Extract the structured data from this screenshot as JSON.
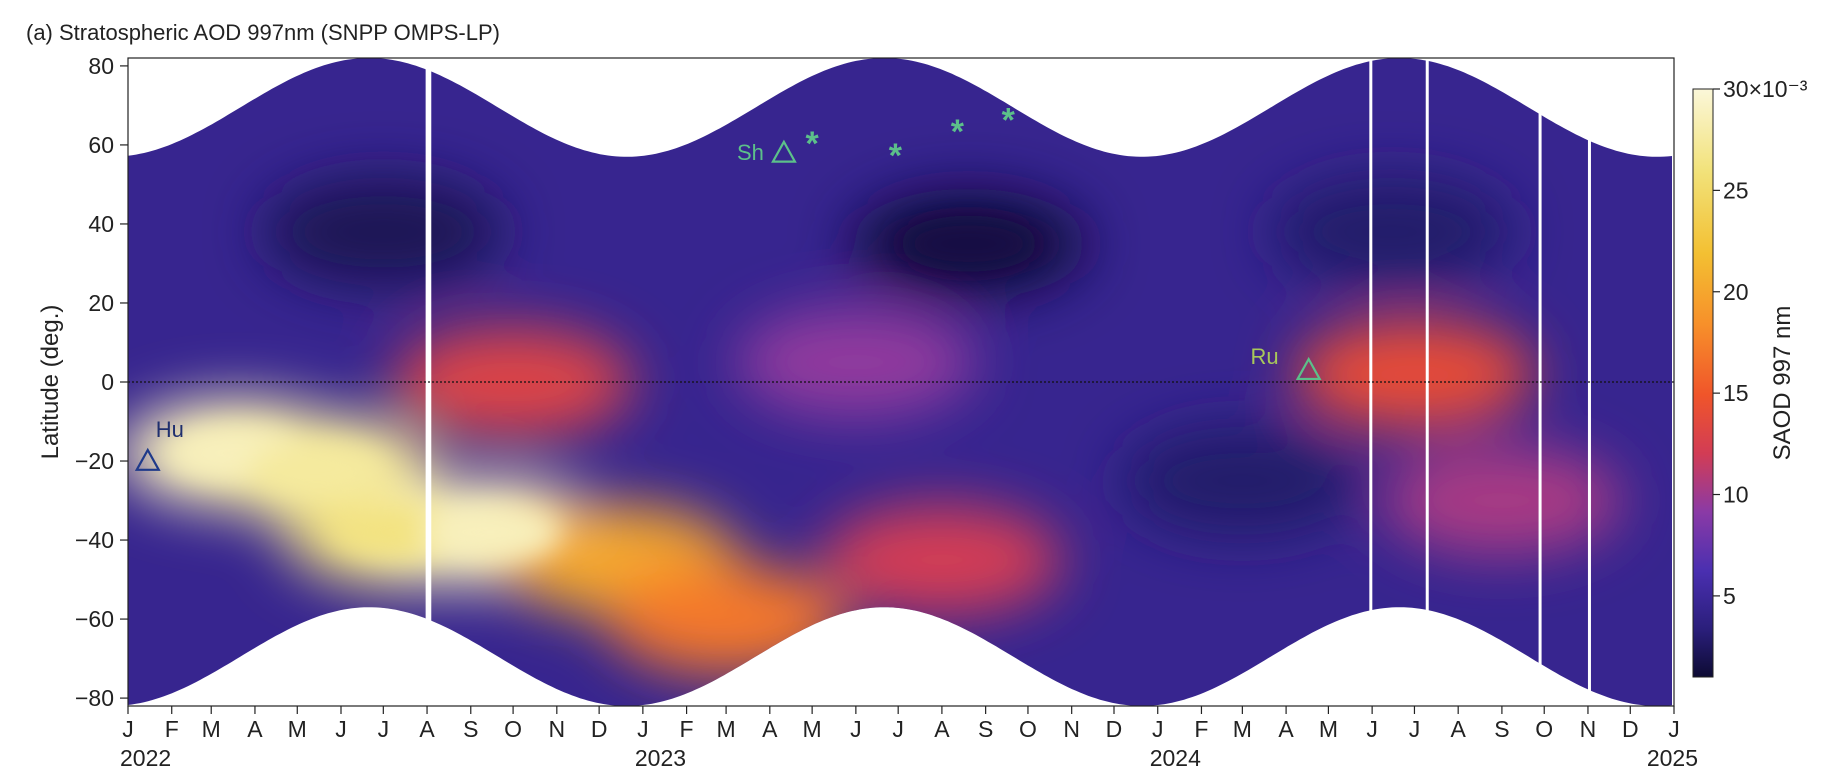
{
  "chart_data": {
    "type": "heatmap",
    "title": "(a) Stratospheric AOD 997nm (SNPP OMPS-LP)",
    "ylabel": "Latitude (deg.)",
    "xlabel": "",
    "ylim": [
      -82,
      82
    ],
    "x_range": [
      "2022-01-01",
      "2025-01-01"
    ],
    "x_ticks": [
      {
        "date": "2022-01-01",
        "label": "J",
        "year": "2022"
      },
      {
        "date": "2022-02-01",
        "label": "F"
      },
      {
        "date": "2022-03-01",
        "label": "M"
      },
      {
        "date": "2022-04-01",
        "label": "A"
      },
      {
        "date": "2022-05-01",
        "label": "M"
      },
      {
        "date": "2022-06-01",
        "label": "J"
      },
      {
        "date": "2022-07-01",
        "label": "J"
      },
      {
        "date": "2022-08-01",
        "label": "A"
      },
      {
        "date": "2022-09-01",
        "label": "S"
      },
      {
        "date": "2022-10-01",
        "label": "O"
      },
      {
        "date": "2022-11-01",
        "label": "N"
      },
      {
        "date": "2022-12-01",
        "label": "D"
      },
      {
        "date": "2023-01-01",
        "label": "J",
        "year": "2023"
      },
      {
        "date": "2023-02-01",
        "label": "F"
      },
      {
        "date": "2023-03-01",
        "label": "M"
      },
      {
        "date": "2023-04-01",
        "label": "A"
      },
      {
        "date": "2023-05-01",
        "label": "M"
      },
      {
        "date": "2023-06-01",
        "label": "J"
      },
      {
        "date": "2023-07-01",
        "label": "J"
      },
      {
        "date": "2023-08-01",
        "label": "A"
      },
      {
        "date": "2023-09-01",
        "label": "S"
      },
      {
        "date": "2023-10-01",
        "label": "O"
      },
      {
        "date": "2023-11-01",
        "label": "N"
      },
      {
        "date": "2023-12-01",
        "label": "D"
      },
      {
        "date": "2024-01-01",
        "label": "J",
        "year": "2024"
      },
      {
        "date": "2024-02-01",
        "label": "F"
      },
      {
        "date": "2024-03-01",
        "label": "M"
      },
      {
        "date": "2024-04-01",
        "label": "A"
      },
      {
        "date": "2024-05-01",
        "label": "M"
      },
      {
        "date": "2024-06-01",
        "label": "J"
      },
      {
        "date": "2024-07-01",
        "label": "J"
      },
      {
        "date": "2024-08-01",
        "label": "A"
      },
      {
        "date": "2024-09-01",
        "label": "S"
      },
      {
        "date": "2024-10-01",
        "label": "O"
      },
      {
        "date": "2024-11-01",
        "label": "N"
      },
      {
        "date": "2024-12-01",
        "label": "D"
      },
      {
        "date": "2025-01-01",
        "label": "J",
        "year": "2025"
      }
    ],
    "y_ticks": [
      {
        "value": 80,
        "label": "80"
      },
      {
        "value": 60,
        "label": "60"
      },
      {
        "value": 40,
        "label": "40"
      },
      {
        "value": 20,
        "label": "20"
      },
      {
        "value": 0,
        "label": "0"
      },
      {
        "value": -20,
        "label": "−20"
      },
      {
        "value": -40,
        "label": "−40"
      },
      {
        "value": -60,
        "label": "−60"
      },
      {
        "value": -80,
        "label": "−80"
      }
    ],
    "colorbar": {
      "label": "SAOD 997 nm",
      "range": [
        0.001,
        0.03
      ],
      "ticks": [
        {
          "value": 0.005,
          "label": "5"
        },
        {
          "value": 0.01,
          "label": "10"
        },
        {
          "value": 0.015,
          "label": "15"
        },
        {
          "value": 0.02,
          "label": "20"
        },
        {
          "value": 0.025,
          "label": "25"
        },
        {
          "value": 0.03,
          "label": "30×10⁻³"
        }
      ],
      "colors": [
        "#0d0b33",
        "#2a1e7a",
        "#4a2fb0",
        "#8a3aa6",
        "#d23c55",
        "#f0552a",
        "#f7902a",
        "#f3c032",
        "#f2e27a",
        "#fbf7d9"
      ]
    },
    "zero_line": {
      "lat": 0,
      "style": "dotted"
    },
    "data_gaps": [
      {
        "start": "2022-07-31",
        "end": "2022-08-04"
      },
      {
        "start": "2024-05-30",
        "end": "2024-06-01"
      },
      {
        "start": "2024-07-09",
        "end": "2024-07-11"
      },
      {
        "start": "2024-09-27",
        "end": "2024-09-29"
      },
      {
        "start": "2024-11-01",
        "end": "2024-11-03"
      }
    ],
    "annotations": [
      {
        "label": "Hu",
        "marker": "triangle",
        "date": "2022-01-15",
        "lat": -20,
        "color": "#1f3a8a",
        "text_color": "#1f2f6e"
      },
      {
        "label": "Sh",
        "marker": "triangle",
        "date": "2023-04-11",
        "lat": 58,
        "color": "#5cc08a",
        "text_color": "#5cc08a"
      },
      {
        "label": "Ru",
        "marker": "triangle",
        "date": "2024-04-17",
        "lat": 3,
        "color": "#5cc08a",
        "text_color": "#a8c85a"
      }
    ],
    "eruption_stars": [
      {
        "date": "2023-05-01",
        "lat": 61
      },
      {
        "date": "2023-06-29",
        "lat": 58
      },
      {
        "date": "2023-08-12",
        "lat": 64
      },
      {
        "date": "2023-09-17",
        "lat": 67
      }
    ],
    "star_color": "#5cc08a",
    "features": [
      {
        "date": "2022-03-20",
        "lat": -18,
        "value": 0.029
      },
      {
        "date": "2022-05-15",
        "lat": -22,
        "value": 0.028
      },
      {
        "date": "2022-07-15",
        "lat": -38,
        "value": 0.027
      },
      {
        "date": "2022-09-15",
        "lat": -38,
        "value": 0.029
      },
      {
        "date": "2022-12-15",
        "lat": -45,
        "value": 0.022
      },
      {
        "date": "2023-03-01",
        "lat": -60,
        "value": 0.019
      },
      {
        "date": "2023-08-01",
        "lat": -45,
        "value": 0.014
      },
      {
        "date": "2022-10-01",
        "lat": 0,
        "value": 0.015
      },
      {
        "date": "2023-06-01",
        "lat": 5,
        "value": 0.011
      },
      {
        "date": "2022-07-01",
        "lat": 38,
        "value": 0.0025
      },
      {
        "date": "2023-08-20",
        "lat": 35,
        "value": 0.0018
      },
      {
        "date": "2024-06-15",
        "lat": 38,
        "value": 0.0035
      },
      {
        "date": "2024-03-01",
        "lat": -25,
        "value": 0.0035
      },
      {
        "date": "2024-07-01",
        "lat": 2,
        "value": 0.016
      },
      {
        "date": "2024-09-01",
        "lat": -30,
        "value": 0.012
      }
    ]
  }
}
